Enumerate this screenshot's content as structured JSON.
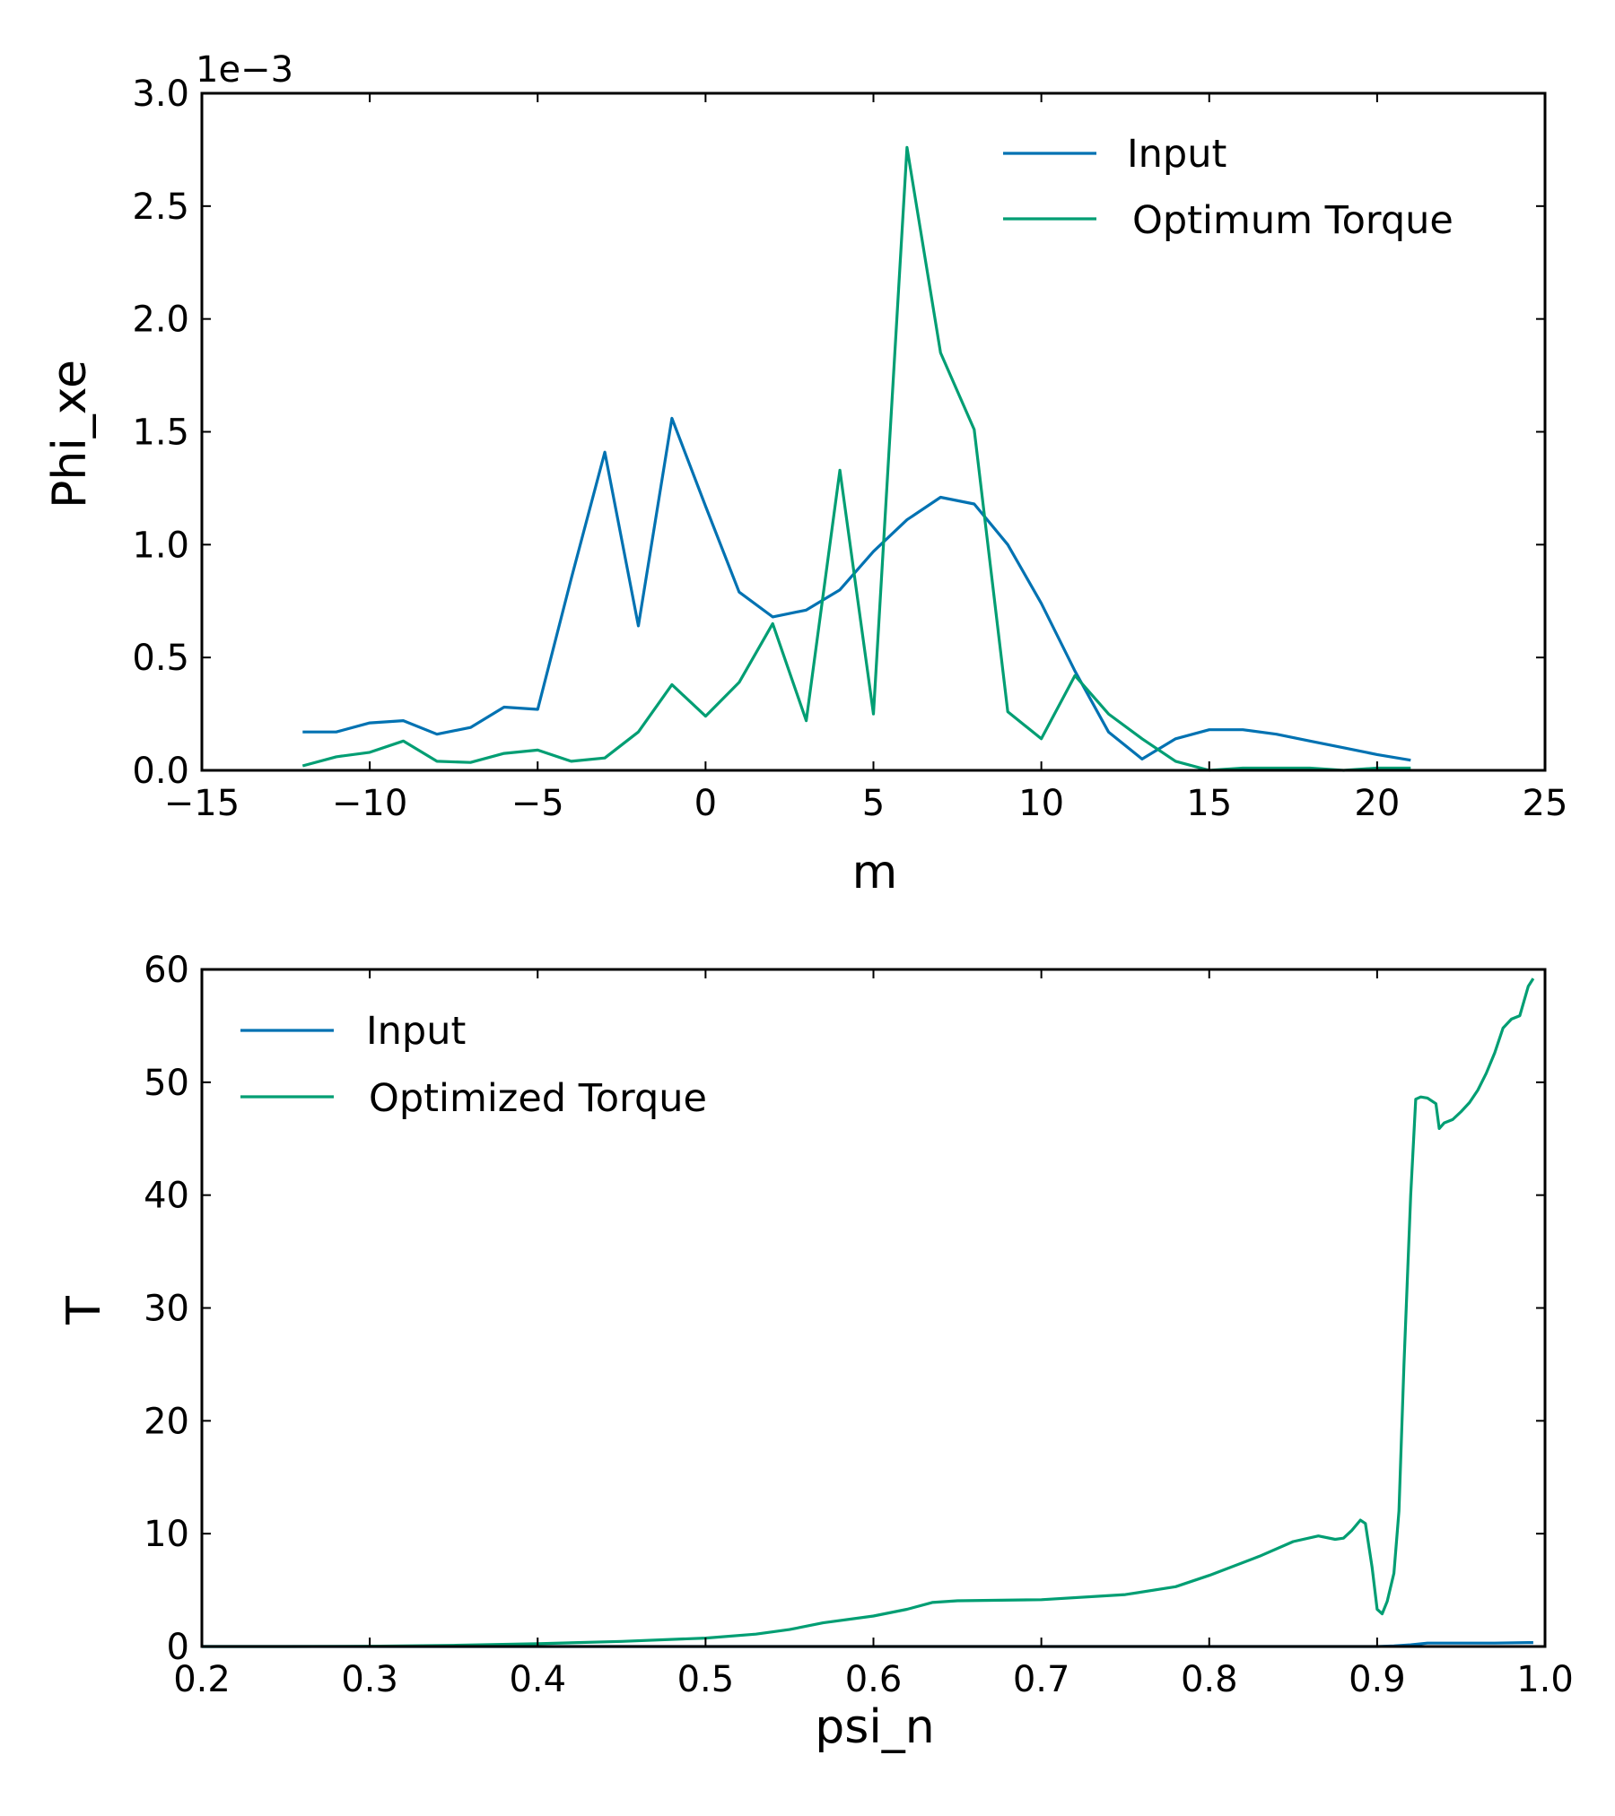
{
  "chart_data": [
    {
      "type": "line",
      "xlabel": "m",
      "ylabel": "Phi_xe",
      "xlim": [
        -15,
        25
      ],
      "ylim": [
        0,
        3.0
      ],
      "y_offset_label": "1e−3",
      "xticks": [
        -15,
        -10,
        -5,
        0,
        5,
        10,
        15,
        20,
        25
      ],
      "xtick_labels": [
        "−15",
        "−10",
        "−5",
        "0",
        "5",
        "10",
        "15",
        "20",
        "25"
      ],
      "yticks": [
        0,
        0.5,
        1.0,
        1.5,
        2.0,
        2.5,
        3.0
      ],
      "ytick_labels": [
        "0.0",
        "0.5",
        "1.0",
        "1.5",
        "2.0",
        "2.5",
        "3.0"
      ],
      "legend_position": "top-right",
      "series": [
        {
          "name": "Input",
          "color": "#0072b2",
          "x": [
            -12,
            -11,
            -10,
            -9,
            -8,
            -7,
            -6,
            -5,
            -4,
            -3,
            -2,
            -1,
            0,
            1,
            2,
            3,
            4,
            5,
            6,
            7,
            8,
            9,
            10,
            11,
            12,
            13,
            14,
            15,
            16,
            17,
            18,
            19,
            20,
            21
          ],
          "y": [
            0.17,
            0.17,
            0.21,
            0.22,
            0.16,
            0.19,
            0.28,
            0.27,
            0.85,
            1.41,
            0.64,
            1.56,
            1.17,
            0.79,
            0.68,
            0.71,
            0.8,
            0.97,
            1.11,
            1.21,
            1.18,
            1.0,
            0.74,
            0.44,
            0.17,
            0.05,
            0.14,
            0.18,
            0.18,
            0.16,
            0.13,
            0.1,
            0.07,
            0.045
          ]
        },
        {
          "name": "Optimum Torque",
          "color": "#009e73",
          "x": [
            -12,
            -11,
            -10,
            -9,
            -8,
            -7,
            -6,
            -5,
            -4,
            -3,
            -2,
            -1,
            0,
            1,
            2,
            3,
            4,
            5,
            6,
            7,
            8,
            9,
            10,
            11,
            12,
            13,
            14,
            15,
            16,
            17,
            18,
            19,
            20,
            21
          ],
          "y": [
            0.02,
            0.06,
            0.08,
            0.13,
            0.04,
            0.035,
            0.075,
            0.09,
            0.04,
            0.055,
            0.17,
            0.38,
            0.24,
            0.39,
            0.65,
            0.22,
            1.33,
            0.25,
            2.76,
            1.85,
            1.51,
            0.26,
            0.14,
            0.42,
            0.25,
            0.14,
            0.04,
            0.0,
            0.01,
            0.01,
            0.01,
            0.0,
            0.01,
            0.01
          ]
        }
      ]
    },
    {
      "type": "line",
      "xlabel": "psi_n",
      "ylabel": "T",
      "xlim": [
        0.2,
        1.0
      ],
      "ylim": [
        0,
        60
      ],
      "xticks": [
        0.2,
        0.3,
        0.4,
        0.5,
        0.6,
        0.7,
        0.8,
        0.9,
        1.0
      ],
      "xtick_labels": [
        "0.2",
        "0.3",
        "0.4",
        "0.5",
        "0.6",
        "0.7",
        "0.8",
        "0.9",
        "1.0"
      ],
      "yticks": [
        0,
        10,
        20,
        30,
        40,
        50,
        60
      ],
      "ytick_labels": [
        "0",
        "10",
        "20",
        "30",
        "40",
        "50",
        "60"
      ],
      "legend_position": "top-left",
      "series": [
        {
          "name": "Input",
          "color": "#0072b2",
          "x": [
            0.2,
            0.3,
            0.4,
            0.5,
            0.6,
            0.7,
            0.8,
            0.9,
            0.91,
            0.92,
            0.93,
            0.95,
            0.97,
            0.99,
            0.993
          ],
          "y": [
            0,
            0,
            0,
            0,
            0,
            0,
            0,
            0,
            0.05,
            0.15,
            0.3,
            0.3,
            0.3,
            0.35,
            0.35
          ]
        },
        {
          "name": "Optimized Torque",
          "color": "#009e73",
          "x": [
            0.2,
            0.25,
            0.3,
            0.35,
            0.4,
            0.45,
            0.5,
            0.53,
            0.55,
            0.57,
            0.6,
            0.62,
            0.635,
            0.65,
            0.7,
            0.75,
            0.78,
            0.8,
            0.83,
            0.85,
            0.865,
            0.875,
            0.88,
            0.885,
            0.89,
            0.893,
            0.897,
            0.9,
            0.903,
            0.906,
            0.91,
            0.913,
            0.916,
            0.92,
            0.923,
            0.926,
            0.93,
            0.935,
            0.937,
            0.94,
            0.945,
            0.95,
            0.955,
            0.96,
            0.965,
            0.97,
            0.975,
            0.98,
            0.985,
            0.99,
            0.993
          ],
          "y": [
            0,
            0,
            0.02,
            0.1,
            0.25,
            0.45,
            0.75,
            1.1,
            1.5,
            2.1,
            2.7,
            3.3,
            3.9,
            4.05,
            4.15,
            4.6,
            5.3,
            6.3,
            8.0,
            9.3,
            9.8,
            9.5,
            9.6,
            10.3,
            11.2,
            10.9,
            7.0,
            3.3,
            2.9,
            4.0,
            6.5,
            12.0,
            25.0,
            40.0,
            48.5,
            48.7,
            48.6,
            48.1,
            45.9,
            46.4,
            46.7,
            47.4,
            48.2,
            49.3,
            50.8,
            52.6,
            54.8,
            55.6,
            55.9,
            58.5,
            59.2
          ]
        }
      ]
    }
  ]
}
